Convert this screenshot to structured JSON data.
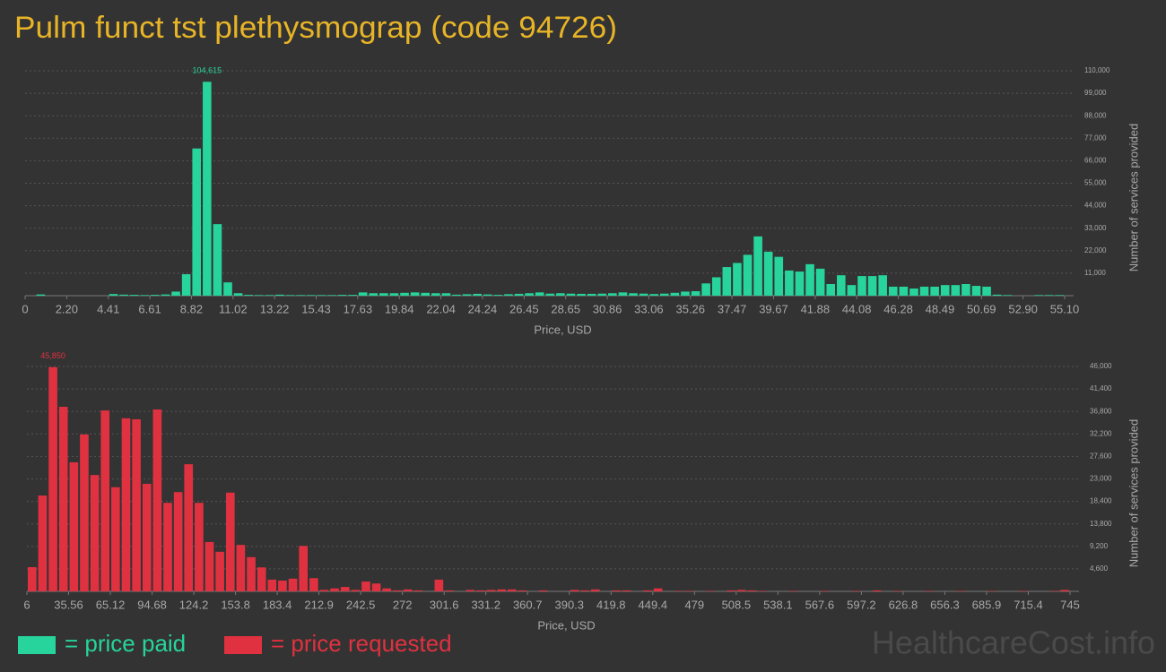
{
  "title": "Pulm funct tst plethysmograp (code 94726)",
  "watermark": "HealthcareCost.info",
  "chart_data": [
    {
      "type": "histogram",
      "x_label": "Price, USD",
      "y_label": "Number of services provided",
      "grid": true,
      "bins": [
        0,
        0.551,
        1.102,
        1.653,
        2.204,
        2.755,
        3.306,
        3.857,
        4.408,
        4.959,
        5.51,
        6.061,
        6.612,
        7.163,
        7.714,
        8.265,
        8.816,
        9.367,
        9.918,
        10.469,
        11.02,
        11.571,
        12.122,
        12.673,
        13.224,
        13.775,
        14.326,
        14.877,
        15.428,
        15.979,
        16.53,
        17.081,
        17.632,
        18.183,
        18.734,
        19.285,
        19.836,
        20.387,
        20.938,
        21.489,
        22.04,
        22.591,
        23.142,
        23.693,
        24.244,
        24.795,
        25.346,
        25.897,
        26.448,
        26.999,
        27.55,
        28.101,
        28.652,
        29.203,
        29.754,
        30.305,
        30.856,
        31.407,
        31.958,
        32.509,
        33.06,
        33.611,
        34.162,
        34.713,
        35.264,
        35.815,
        36.366,
        36.917,
        37.468,
        38.019,
        38.57,
        39.121,
        39.672,
        40.223,
        40.774,
        41.325,
        41.876,
        42.427,
        42.978,
        43.529,
        44.08,
        44.631,
        45.182,
        45.733,
        46.284,
        46.835,
        47.386,
        47.937,
        48.488,
        49.039,
        49.59,
        50.141,
        50.692,
        51.243,
        51.794,
        52.345,
        52.896,
        53.447,
        53.998,
        54.549,
        55.1
      ],
      "series": [
        {
          "name": "= price paid",
          "color": "#27d49b",
          "values": [
            0,
            600,
            0,
            0,
            0,
            0,
            0,
            0,
            800,
            500,
            400,
            300,
            400,
            600,
            2000,
            10500,
            72000,
            104615,
            35000,
            6500,
            1200,
            400,
            300,
            300,
            500,
            300,
            300,
            300,
            300,
            300,
            400,
            400,
            1600,
            1200,
            1200,
            1200,
            1400,
            1600,
            1400,
            1200,
            1200,
            500,
            700,
            900,
            600,
            400,
            700,
            900,
            1200,
            1600,
            1000,
            1200,
            1000,
            900,
            900,
            1000,
            1200,
            1600,
            1200,
            1000,
            800,
            1000,
            1400,
            2000,
            2200,
            6000,
            9000,
            14000,
            16000,
            20000,
            29000,
            21500,
            19000,
            12300,
            11800,
            15400,
            13200,
            5700,
            10000,
            5200,
            9600,
            9600,
            10000,
            4400,
            4400,
            3500,
            4400,
            4400,
            5200,
            5200,
            5700,
            4800,
            4400,
            500,
            300,
            0,
            0,
            300,
            300,
            300
          ],
          "value_labels": [
            null,
            null,
            null,
            null,
            null,
            null,
            null,
            null,
            null,
            null,
            null,
            null,
            null,
            null,
            null,
            null,
            null,
            "104,615",
            null,
            null,
            null,
            null,
            null,
            null,
            null,
            null,
            null,
            null,
            null,
            null,
            null,
            null,
            null,
            null,
            null,
            null,
            null,
            null,
            null,
            null,
            null,
            null,
            null,
            null,
            null,
            null,
            null,
            null,
            null,
            null,
            null,
            null,
            null,
            null,
            null,
            null,
            null,
            null,
            null,
            null,
            null,
            null,
            null,
            null,
            null,
            null,
            null,
            null,
            null,
            null,
            null,
            null,
            null,
            null,
            null,
            null,
            null,
            null,
            null,
            null,
            null,
            null,
            null,
            null,
            null,
            null,
            null,
            null,
            null,
            null,
            null,
            null,
            null,
            null,
            null,
            null,
            null,
            null,
            null,
            null
          ]
        }
      ],
      "xlim": [
        0,
        55.1
      ],
      "xticks": [
        0,
        {
          "value": 2.204,
          "label": "2.20"
        },
        {
          "value": 4.408,
          "label": "4.41"
        },
        {
          "value": 6.612,
          "label": "6.61"
        },
        {
          "value": 8.816,
          "label": "8.82"
        },
        {
          "value": 11.02,
          "label": "11.02"
        },
        {
          "value": 13.224,
          "label": "13.22"
        },
        {
          "value": 15.428,
          "label": "15.43"
        },
        {
          "value": 17.632,
          "label": "17.63"
        },
        {
          "value": 19.836,
          "label": "19.84"
        },
        {
          "value": 22.04,
          "label": "22.04"
        },
        {
          "value": 24.244,
          "label": "24.24"
        },
        {
          "value": 26.448,
          "label": "26.45"
        },
        {
          "value": 28.652,
          "label": "28.65"
        },
        {
          "value": 30.856,
          "label": "30.86"
        },
        {
          "value": 33.06,
          "label": "33.06"
        },
        {
          "value": 35.264,
          "label": "35.26"
        },
        {
          "value": 37.468,
          "label": "37.47"
        },
        {
          "value": 39.672,
          "label": "39.67"
        },
        {
          "value": 41.876,
          "label": "41.88"
        },
        {
          "value": 44.08,
          "label": "44.08"
        },
        {
          "value": 46.284,
          "label": "46.28"
        },
        {
          "value": 48.488,
          "label": "48.49"
        },
        {
          "value": 50.692,
          "label": "50.69"
        },
        {
          "value": 52.896,
          "label": "52.90"
        },
        {
          "value": 55.1,
          "label": "55.10"
        }
      ],
      "ylim": [
        0,
        110000
      ],
      "yticks": [
        {
          "value": 11000,
          "label": "11,000"
        },
        {
          "value": 22000,
          "label": "22,000"
        },
        {
          "value": 33000,
          "label": "33,000"
        },
        {
          "value": 44000,
          "label": "44,000"
        },
        {
          "value": 55000,
          "label": "55,000"
        },
        {
          "value": 66000,
          "label": "66,000"
        },
        {
          "value": 77000,
          "label": "77,000"
        },
        {
          "value": 88000,
          "label": "88,000"
        },
        {
          "value": 99000,
          "label": "99,000"
        },
        {
          "value": 110000,
          "label": "110,000"
        }
      ]
    },
    {
      "type": "histogram",
      "x_label": "Price, USD",
      "y_label": "Number of services provided",
      "grid": true,
      "bins": [
        6,
        13.39,
        20.78,
        28.17,
        35.56,
        42.95,
        50.34,
        57.73,
        65.12,
        72.51,
        79.9,
        87.29,
        94.68,
        102.07,
        109.46,
        116.85,
        124.24,
        131.63,
        139.02,
        146.41,
        153.8,
        161.19,
        168.58,
        175.97,
        183.36,
        190.75,
        198.14,
        205.53,
        212.92,
        220.31,
        227.7,
        235.09,
        242.48,
        249.87,
        257.26,
        264.65,
        272.04,
        279.43,
        286.82,
        294.21,
        301.6,
        308.99,
        316.38,
        323.77,
        331.16,
        338.55,
        345.94,
        353.33,
        360.72,
        368.11,
        375.5,
        382.89,
        390.28,
        397.67,
        405.06,
        412.45,
        419.84,
        427.23,
        434.62,
        442.01,
        449.4,
        456.79,
        464.18,
        471.57,
        478.96,
        486.35,
        493.74,
        501.13,
        508.52,
        515.91,
        523.3,
        530.69,
        538.08,
        545.47,
        552.86,
        560.25,
        567.64,
        575.03,
        582.42,
        589.81,
        597.2,
        604.59,
        611.98,
        619.37,
        626.76,
        634.15,
        641.54,
        648.93,
        656.32,
        663.71,
        671.1,
        678.49,
        685.88,
        693.27,
        700.66,
        708.05,
        715.44,
        722.83,
        730.22,
        737.61,
        745
      ],
      "series": [
        {
          "name": "= price requested",
          "color": "#e03140",
          "values": [
            4950,
            19600,
            45850,
            37750,
            26400,
            32100,
            23800,
            37000,
            21300,
            35400,
            35200,
            22000,
            37200,
            18100,
            20300,
            26000,
            18100,
            10100,
            8100,
            20200,
            9500,
            7000,
            4900,
            2400,
            2200,
            2600,
            9300,
            2700,
            300,
            600,
            900,
            300,
            2000,
            1600,
            600,
            200,
            400,
            200,
            0,
            2400,
            200,
            0,
            300,
            200,
            300,
            400,
            400,
            200,
            0,
            200,
            0,
            0,
            300,
            200,
            400,
            0,
            200,
            200,
            0,
            200,
            600,
            0,
            100,
            100,
            0,
            100,
            0,
            200,
            300,
            200,
            100,
            0,
            0,
            100,
            0,
            0,
            100,
            0,
            0,
            100,
            0,
            200,
            0,
            100,
            0,
            0,
            100,
            0,
            0,
            100,
            0,
            0,
            100,
            0,
            0,
            100,
            0,
            0,
            100,
            300
          ],
          "value_labels": [
            null,
            null,
            "45,850",
            null,
            null,
            null,
            null,
            null,
            null,
            null,
            null,
            null,
            null,
            null,
            null,
            null,
            null,
            null,
            null,
            null,
            null,
            null,
            null,
            null,
            null,
            null,
            null,
            null,
            null,
            null,
            null,
            null,
            null,
            null,
            null,
            null,
            null,
            null,
            null,
            null,
            null,
            null,
            null,
            null,
            null,
            null,
            null,
            null,
            null,
            null,
            null,
            null,
            null,
            null,
            null,
            null,
            null,
            null,
            null,
            null,
            null,
            null,
            null,
            null,
            null,
            null,
            null,
            null,
            null,
            null,
            null,
            null,
            null,
            null,
            null,
            null,
            null,
            null,
            null,
            null,
            null,
            null,
            null,
            null,
            null,
            null,
            null,
            null,
            null,
            null,
            null,
            null,
            null,
            null,
            null,
            null,
            null,
            null,
            null,
            null
          ]
        }
      ],
      "xlim": [
        6,
        745
      ],
      "xticks": [
        6,
        35.56,
        65.12,
        94.68,
        {
          "value": 124.24,
          "label": "124.2"
        },
        153.8,
        {
          "value": 183.36,
          "label": "183.4"
        },
        {
          "value": 212.92,
          "label": "212.9"
        },
        {
          "value": 242.48,
          "label": "242.5"
        },
        {
          "value": 272.04,
          "label": "272"
        },
        301.6,
        {
          "value": 331.16,
          "label": "331.2"
        },
        {
          "value": 360.72,
          "label": "360.7"
        },
        {
          "value": 390.28,
          "label": "390.3"
        },
        {
          "value": 419.84,
          "label": "419.8"
        },
        449.4,
        {
          "value": 478.96,
          "label": "479"
        },
        {
          "value": 508.52,
          "label": "508.5"
        },
        {
          "value": 538.08,
          "label": "538.1"
        },
        {
          "value": 567.64,
          "label": "567.6"
        },
        597.2,
        {
          "value": 626.76,
          "label": "626.8"
        },
        {
          "value": 656.32,
          "label": "656.3"
        },
        {
          "value": 685.88,
          "label": "685.9"
        },
        {
          "value": 715.44,
          "label": "715.4"
        },
        745
      ],
      "ylim": [
        0,
        46000
      ],
      "yticks": [
        {
          "value": 4600,
          "label": "4,600"
        },
        {
          "value": 9200,
          "label": "9,200"
        },
        {
          "value": 13800,
          "label": "13,800"
        },
        {
          "value": 18400,
          "label": "18,400"
        },
        {
          "value": 23000,
          "label": "23,000"
        },
        {
          "value": 27600,
          "label": "27,600"
        },
        {
          "value": 32200,
          "label": "32,200"
        },
        {
          "value": 36800,
          "label": "36,800"
        },
        {
          "value": 41400,
          "label": "41,400"
        },
        {
          "value": 46000,
          "label": "46,000"
        }
      ]
    }
  ]
}
